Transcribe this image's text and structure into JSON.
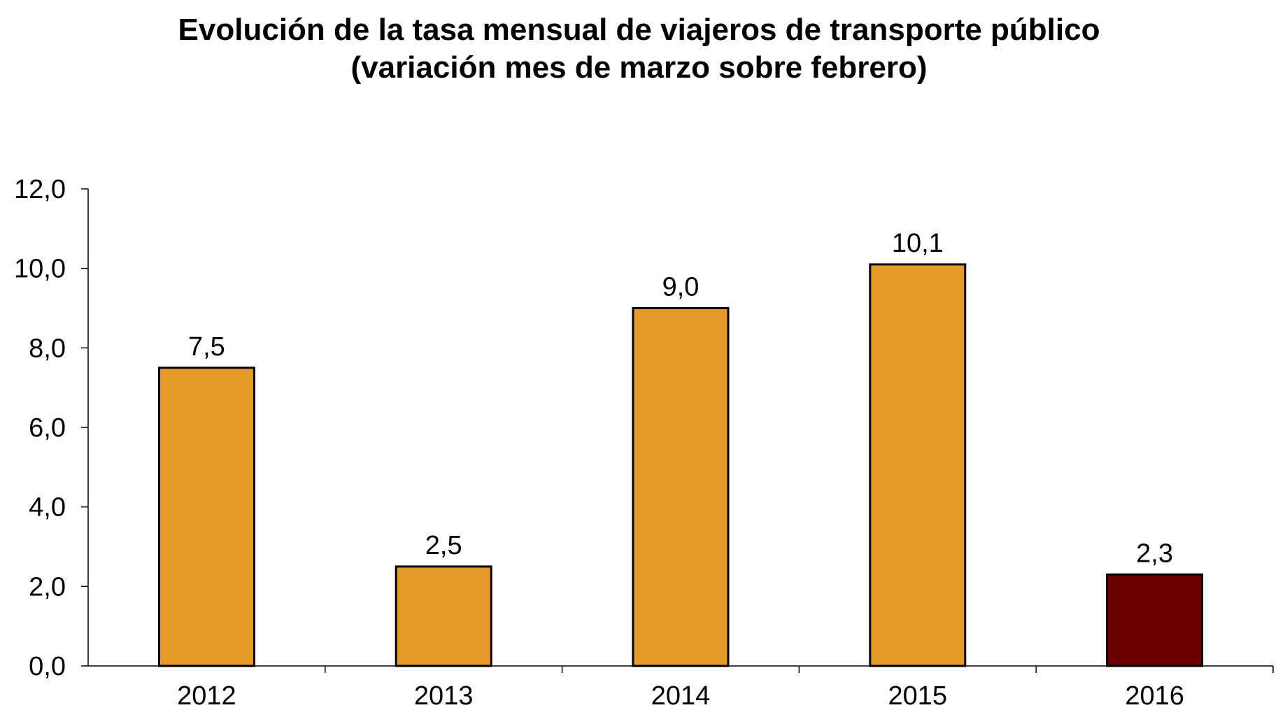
{
  "chart_data": {
    "type": "bar",
    "title": "Evolución de la tasa mensual de viajeros de transporte público",
    "subtitle": "(variación mes de marzo sobre febrero)",
    "xlabel": "",
    "ylabel": "",
    "categories": [
      "2012",
      "2013",
      "2014",
      "2015",
      "2016"
    ],
    "values": [
      7.5,
      2.5,
      9.0,
      10.1,
      2.3
    ],
    "value_labels": [
      "7,5",
      "2,5",
      "9,0",
      "10,1",
      "2,3"
    ],
    "bar_colors": [
      "#E79A27",
      "#E79A27",
      "#E79A27",
      "#E79A27",
      "#6B0000"
    ],
    "ylim": [
      0,
      12
    ],
    "yticks": [
      0,
      2,
      4,
      6,
      8,
      10,
      12
    ],
    "ytick_labels": [
      "0,0",
      "2,0",
      "4,0",
      "6,0",
      "8,0",
      "10,0",
      "12,0"
    ],
    "grid": false,
    "legend": "none"
  }
}
